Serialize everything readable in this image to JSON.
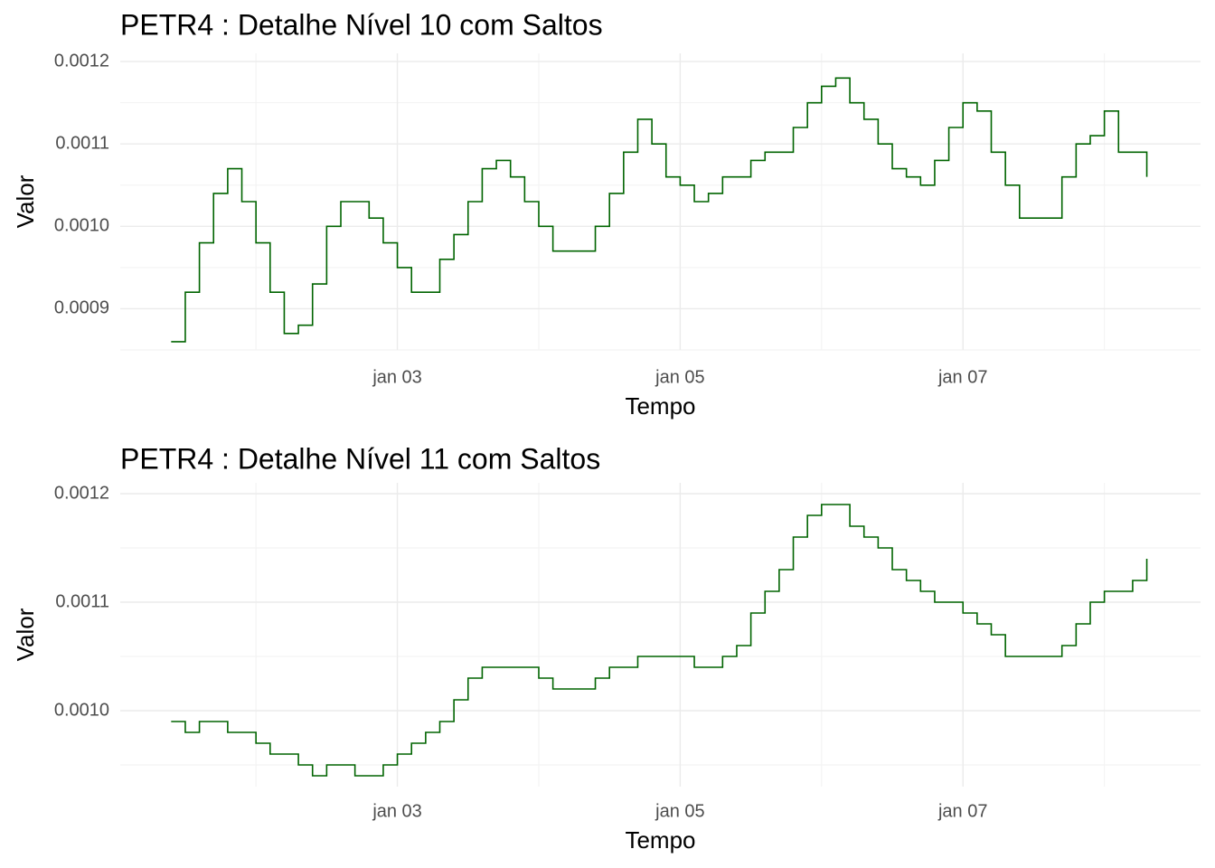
{
  "chart_data": [
    {
      "type": "step",
      "title": "PETR4 : Detalhe Nível 10 com Saltos",
      "x_label": "Tempo",
      "y_label": "Valor",
      "color": "#006400",
      "grid": true,
      "xlim": [
        1.04,
        8.68
      ],
      "xticks": [
        {
          "value": 3,
          "label": "jan 03"
        },
        {
          "value": 5,
          "label": "jan 05"
        },
        {
          "value": 7,
          "label": "jan 07"
        }
      ],
      "xminor": [
        2,
        4,
        6,
        8
      ],
      "ylim": [
        0.00085,
        0.00121
      ],
      "yticks": [
        0.0009,
        {
          "value": 0.001,
          "label": "0.0010"
        },
        0.0011,
        0.0012
      ],
      "yminor": [
        0.00085,
        0.00095,
        0.00105,
        0.00115
      ],
      "x": [
        1.4,
        1.5,
        1.6,
        1.7,
        1.8,
        1.9,
        2.0,
        2.1,
        2.2,
        2.3,
        2.4,
        2.5,
        2.6,
        2.7,
        2.8,
        2.9,
        3.0,
        3.1,
        3.2,
        3.3,
        3.4,
        3.5,
        3.6,
        3.7,
        3.8,
        3.9,
        4.0,
        4.1,
        4.2,
        4.3,
        4.4,
        4.5,
        4.6,
        4.7,
        4.8,
        4.9,
        5.0,
        5.1,
        5.2,
        5.3,
        5.4,
        5.5,
        5.6,
        5.7,
        5.8,
        5.9,
        6.0,
        6.1,
        6.2,
        6.3,
        6.4,
        6.5,
        6.6,
        6.7,
        6.8,
        6.9,
        7.0,
        7.1,
        7.2,
        7.3,
        7.4,
        7.5,
        7.6,
        7.7,
        7.8,
        7.9,
        8.0,
        8.1,
        8.2,
        8.3
      ],
      "values": [
        0.00086,
        0.00092,
        0.00098,
        0.00104,
        0.00107,
        0.00103,
        0.00098,
        0.00092,
        0.00087,
        0.00088,
        0.00093,
        0.001,
        0.00103,
        0.00103,
        0.00101,
        0.00098,
        0.00095,
        0.00092,
        0.00092,
        0.00096,
        0.00099,
        0.00103,
        0.00107,
        0.00108,
        0.00106,
        0.00103,
        0.001,
        0.00097,
        0.00097,
        0.00097,
        0.001,
        0.00104,
        0.00109,
        0.00113,
        0.0011,
        0.00106,
        0.00105,
        0.00103,
        0.00104,
        0.00106,
        0.00106,
        0.00108,
        0.00109,
        0.00109,
        0.00112,
        0.00115,
        0.00117,
        0.00118,
        0.00115,
        0.00113,
        0.0011,
        0.00107,
        0.00106,
        0.00105,
        0.00108,
        0.00112,
        0.00115,
        0.00114,
        0.00109,
        0.00105,
        0.00101,
        0.00101,
        0.00101,
        0.00106,
        0.0011,
        0.00111,
        0.00114,
        0.00109,
        0.00109,
        0.00106
      ]
    },
    {
      "type": "step",
      "title": "PETR4 : Detalhe Nível 11 com Saltos",
      "x_label": "Tempo",
      "y_label": "Valor",
      "color": "#006400",
      "grid": true,
      "xlim": [
        1.04,
        8.68
      ],
      "xticks": [
        {
          "value": 3,
          "label": "jan 03"
        },
        {
          "value": 5,
          "label": "jan 05"
        },
        {
          "value": 7,
          "label": "jan 07"
        }
      ],
      "xminor": [
        2,
        4,
        6,
        8
      ],
      "ylim": [
        0.00093,
        0.00121
      ],
      "yticks": [
        {
          "value": 0.001,
          "label": "0.0010"
        },
        0.0011,
        0.0012
      ],
      "yminor": [
        0.00095,
        0.00105,
        0.00115
      ],
      "x": [
        1.4,
        1.5,
        1.6,
        1.7,
        1.8,
        1.9,
        2.0,
        2.1,
        2.2,
        2.3,
        2.4,
        2.5,
        2.6,
        2.7,
        2.8,
        2.9,
        3.0,
        3.1,
        3.2,
        3.3,
        3.4,
        3.5,
        3.6,
        3.7,
        3.8,
        3.9,
        4.0,
        4.1,
        4.2,
        4.3,
        4.4,
        4.5,
        4.6,
        4.7,
        4.8,
        4.9,
        5.0,
        5.1,
        5.2,
        5.3,
        5.4,
        5.5,
        5.6,
        5.7,
        5.8,
        5.9,
        6.0,
        6.1,
        6.2,
        6.3,
        6.4,
        6.5,
        6.6,
        6.7,
        6.8,
        6.9,
        7.0,
        7.1,
        7.2,
        7.3,
        7.4,
        7.5,
        7.6,
        7.7,
        7.8,
        7.9,
        8.0,
        8.1,
        8.2,
        8.3
      ],
      "values": [
        0.00099,
        0.00098,
        0.00099,
        0.00099,
        0.00098,
        0.00098,
        0.00097,
        0.00096,
        0.00096,
        0.00095,
        0.00094,
        0.00095,
        0.00095,
        0.00094,
        0.00094,
        0.00095,
        0.00096,
        0.00097,
        0.00098,
        0.00099,
        0.00101,
        0.00103,
        0.00104,
        0.00104,
        0.00104,
        0.00104,
        0.00103,
        0.00102,
        0.00102,
        0.00102,
        0.00103,
        0.00104,
        0.00104,
        0.00105,
        0.00105,
        0.00105,
        0.00105,
        0.00104,
        0.00104,
        0.00105,
        0.00106,
        0.00109,
        0.00111,
        0.00113,
        0.00116,
        0.00118,
        0.00119,
        0.00119,
        0.00117,
        0.00116,
        0.00115,
        0.00113,
        0.00112,
        0.00111,
        0.0011,
        0.0011,
        0.00109,
        0.00108,
        0.00107,
        0.00105,
        0.00105,
        0.00105,
        0.00105,
        0.00106,
        0.00108,
        0.0011,
        0.00111,
        0.00111,
        0.00112,
        0.00114
      ]
    }
  ]
}
